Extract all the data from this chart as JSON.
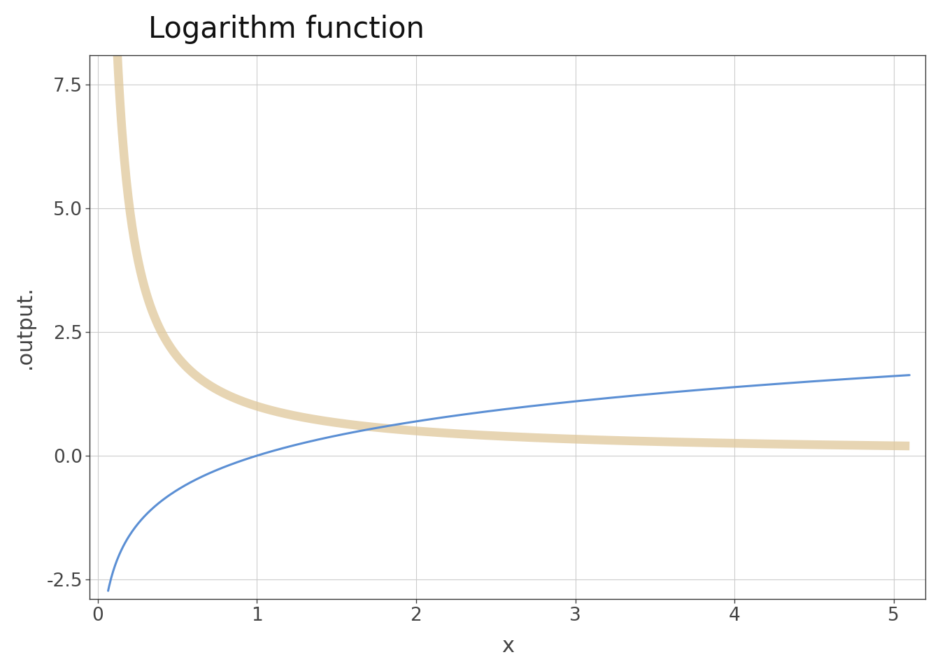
{
  "title": "Logarithm function",
  "xlabel": "x",
  "ylabel": ".output.",
  "xlim": [
    -0.05,
    5.2
  ],
  "ylim": [
    -2.9,
    8.1
  ],
  "x_ticks": [
    0,
    1,
    2,
    3,
    4,
    5
  ],
  "y_ticks": [
    -2.5,
    0.0,
    2.5,
    5.0,
    7.5
  ],
  "x_start": 0.065,
  "x_end": 5.1,
  "n_points": 800,
  "blue_color": "#5B8FD4",
  "tan_color": "#DFC79A",
  "blue_linewidth": 2.2,
  "tan_linewidth": 9.0,
  "tan_alpha": 0.75,
  "plot_bg_color": "#FFFFFF",
  "fig_bg_color": "#FFFFFF",
  "grid_color": "#CCCCCC",
  "title_fontsize": 30,
  "label_fontsize": 22,
  "tick_fontsize": 19
}
